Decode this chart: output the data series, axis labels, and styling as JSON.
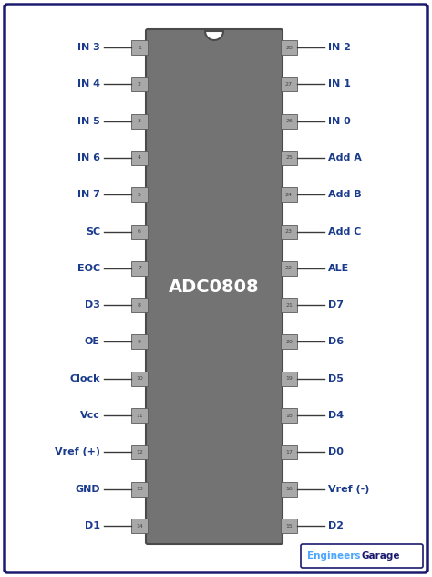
{
  "bg_color": "#ffffff",
  "border_color": "#1a1a6e",
  "ic_color": "#737373",
  "ic_label": "ADC0808",
  "ic_label_color": "#ffffff",
  "pin_box_color": "#a8a8a8",
  "pin_box_edge": "#5a5a5a",
  "pin_text_color": "#444444",
  "label_color": "#1a3a8c",
  "line_color": "#3a3a3a",
  "left_pins": [
    {
      "num": 1,
      "label": "IN 3"
    },
    {
      "num": 2,
      "label": "IN 4"
    },
    {
      "num": 3,
      "label": "IN 5"
    },
    {
      "num": 4,
      "label": "IN 6"
    },
    {
      "num": 5,
      "label": "IN 7"
    },
    {
      "num": 6,
      "label": "SC"
    },
    {
      "num": 7,
      "label": "EOC"
    },
    {
      "num": 8,
      "label": "D3"
    },
    {
      "num": 9,
      "label": "OE"
    },
    {
      "num": 10,
      "label": "Clock"
    },
    {
      "num": 11,
      "label": "Vcc"
    },
    {
      "num": 12,
      "label": "Vref (+)"
    },
    {
      "num": 13,
      "label": "GND"
    },
    {
      "num": 14,
      "label": "D1"
    }
  ],
  "right_pins": [
    {
      "num": 28,
      "label": "IN 2"
    },
    {
      "num": 27,
      "label": "IN 1"
    },
    {
      "num": 26,
      "label": "IN 0"
    },
    {
      "num": 25,
      "label": "Add A"
    },
    {
      "num": 24,
      "label": "Add B"
    },
    {
      "num": 23,
      "label": "Add C"
    },
    {
      "num": 22,
      "label": "ALE"
    },
    {
      "num": 21,
      "label": "D7"
    },
    {
      "num": 20,
      "label": "D6"
    },
    {
      "num": 19,
      "label": "D5"
    },
    {
      "num": 18,
      "label": "D4"
    },
    {
      "num": 17,
      "label": "D0"
    },
    {
      "num": 16,
      "label": "Vref (-)"
    },
    {
      "num": 15,
      "label": "D2"
    }
  ],
  "watermark_engineers_color": "#4da6ff",
  "watermark_garage_color": "#1a1a6e"
}
